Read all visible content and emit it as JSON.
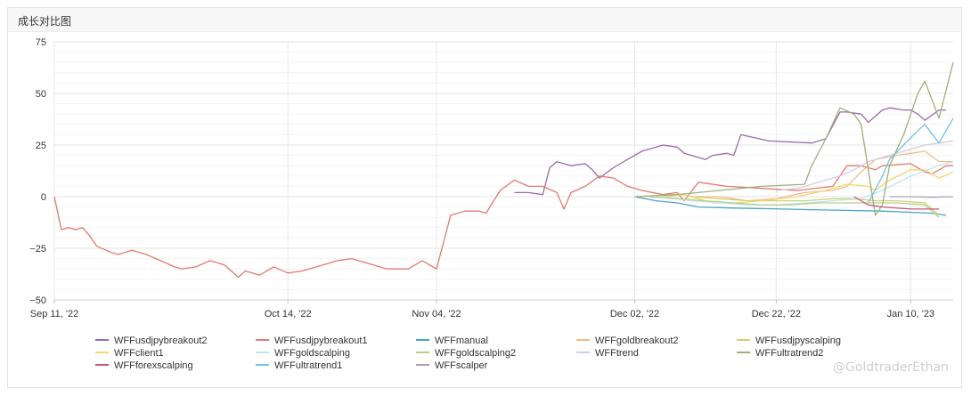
{
  "card": {
    "title": "成长对比图"
  },
  "watermark": "@GoldtraderEthan",
  "chart_data": {
    "type": "line",
    "y_ticks": [
      75,
      50,
      25,
      0,
      -25,
      -50
    ],
    "y_tick_labels": [
      "75",
      "50",
      "25",
      "0",
      "−25",
      "−50"
    ],
    "ylim": [
      -50,
      75
    ],
    "x_tick_labels": [
      "Sep 11, '22",
      "Oct 14, '22",
      "Nov 04, '22",
      "Dec 02, '22",
      "Dec 22, '22",
      "Jan 10, '23"
    ],
    "x_tick_dates": [
      "2022-09-11",
      "2022-10-14",
      "2022-11-04",
      "2022-12-02",
      "2022-12-22",
      "2023-01-10"
    ],
    "xlim": [
      "2022-09-11",
      "2023-01-16"
    ],
    "grid": true,
    "legend_position": "bottom",
    "series": [
      {
        "name": "WFFusdjpybreakout2",
        "color": "#9b6aa8",
        "points": [
          [
            "2022-11-15",
            2
          ],
          [
            "2022-11-17",
            2
          ],
          [
            "2022-11-19",
            1
          ],
          [
            "2022-11-20",
            14
          ],
          [
            "2022-11-21",
            17
          ],
          [
            "2022-11-23",
            15
          ],
          [
            "2022-11-25",
            16
          ],
          [
            "2022-11-26",
            13
          ],
          [
            "2022-11-27",
            9
          ],
          [
            "2022-11-29",
            14
          ],
          [
            "2022-12-01",
            18
          ],
          [
            "2022-12-03",
            22
          ],
          [
            "2022-12-06",
            25
          ],
          [
            "2022-12-08",
            24
          ],
          [
            "2022-12-09",
            21
          ],
          [
            "2022-12-12",
            18
          ],
          [
            "2022-12-13",
            20
          ],
          [
            "2022-12-15",
            21
          ],
          [
            "2022-12-16",
            20
          ],
          [
            "2022-12-17",
            30
          ],
          [
            "2022-12-21",
            27
          ],
          [
            "2022-12-27",
            26
          ],
          [
            "2022-12-29",
            28
          ],
          [
            "2022-12-31",
            41
          ],
          [
            "2023-01-01",
            41
          ],
          [
            "2023-01-03",
            40
          ],
          [
            "2023-01-04",
            36
          ],
          [
            "2023-01-06",
            42
          ],
          [
            "2023-01-07",
            43
          ],
          [
            "2023-01-09",
            42
          ],
          [
            "2023-01-10",
            42
          ],
          [
            "2023-01-11",
            40
          ],
          [
            "2023-01-12",
            37
          ],
          [
            "2023-01-14",
            42
          ],
          [
            "2023-01-15",
            42
          ]
        ]
      },
      {
        "name": "WFFusdjpybreakout1",
        "color": "#e07a72",
        "points": [
          [
            "2022-09-11",
            0
          ],
          [
            "2022-09-12",
            -16
          ],
          [
            "2022-09-13",
            -15
          ],
          [
            "2022-09-14",
            -16
          ],
          [
            "2022-09-15",
            -15
          ],
          [
            "2022-09-16",
            -19
          ],
          [
            "2022-09-17",
            -24
          ],
          [
            "2022-09-19",
            -27
          ],
          [
            "2022-09-20",
            -28
          ],
          [
            "2022-09-22",
            -26
          ],
          [
            "2022-09-24",
            -28
          ],
          [
            "2022-09-26",
            -31
          ],
          [
            "2022-09-28",
            -34
          ],
          [
            "2022-09-29",
            -35
          ],
          [
            "2022-10-01",
            -34
          ],
          [
            "2022-10-03",
            -31
          ],
          [
            "2022-10-05",
            -33
          ],
          [
            "2022-10-07",
            -39
          ],
          [
            "2022-10-08",
            -36
          ],
          [
            "2022-10-10",
            -38
          ],
          [
            "2022-10-12",
            -34
          ],
          [
            "2022-10-14",
            -37
          ],
          [
            "2022-10-16",
            -36
          ],
          [
            "2022-10-18",
            -34
          ],
          [
            "2022-10-19",
            -33
          ],
          [
            "2022-10-21",
            -31
          ],
          [
            "2022-10-23",
            -30
          ],
          [
            "2022-10-25",
            -32
          ],
          [
            "2022-10-28",
            -35
          ],
          [
            "2022-10-31",
            -35
          ],
          [
            "2022-11-02",
            -31
          ],
          [
            "2022-11-04",
            -35
          ],
          [
            "2022-11-06",
            -9
          ],
          [
            "2022-11-08",
            -7
          ],
          [
            "2022-11-10",
            -7
          ],
          [
            "2022-11-11",
            -8
          ],
          [
            "2022-11-13",
            3
          ],
          [
            "2022-11-15",
            8
          ],
          [
            "2022-11-17",
            5
          ],
          [
            "2022-11-19",
            5
          ],
          [
            "2022-11-21",
            2
          ],
          [
            "2022-11-22",
            -6
          ],
          [
            "2022-11-23",
            2
          ],
          [
            "2022-11-25",
            5
          ],
          [
            "2022-11-27",
            10
          ],
          [
            "2022-11-29",
            9
          ],
          [
            "2022-12-01",
            5
          ],
          [
            "2022-12-03",
            3
          ],
          [
            "2022-12-06",
            1
          ],
          [
            "2022-12-08",
            2
          ],
          [
            "2022-12-09",
            -2
          ],
          [
            "2022-12-11",
            7
          ],
          [
            "2022-12-15",
            5
          ],
          [
            "2022-12-20",
            4
          ],
          [
            "2022-12-25",
            3
          ],
          [
            "2022-12-30",
            5
          ],
          [
            "2023-01-01",
            15
          ],
          [
            "2023-01-03",
            15
          ],
          [
            "2023-01-05",
            13
          ],
          [
            "2023-01-06",
            15
          ],
          [
            "2023-01-10",
            16
          ],
          [
            "2023-01-12",
            12
          ],
          [
            "2023-01-13",
            11
          ],
          [
            "2023-01-15",
            15
          ],
          [
            "2023-01-16",
            15
          ]
        ]
      },
      {
        "name": "WFFmanual",
        "color": "#4aa4c8",
        "points": [
          [
            "2022-12-02",
            0
          ],
          [
            "2022-12-05",
            -2
          ],
          [
            "2022-12-08",
            -3
          ],
          [
            "2022-12-11",
            -5
          ],
          [
            "2022-12-16",
            -5.5
          ],
          [
            "2022-12-23",
            -6
          ],
          [
            "2022-12-30",
            -6.5
          ],
          [
            "2023-01-06",
            -7
          ],
          [
            "2023-01-13",
            -8
          ],
          [
            "2023-01-15",
            -9
          ]
        ]
      },
      {
        "name": "WFFgoldbreakout2",
        "color": "#f5b98a",
        "points": [
          [
            "2022-12-10",
            0
          ],
          [
            "2022-12-14",
            0
          ],
          [
            "2022-12-18",
            -2
          ],
          [
            "2022-12-22",
            -1
          ],
          [
            "2022-12-26",
            2
          ],
          [
            "2022-12-30",
            3
          ],
          [
            "2023-01-01",
            5
          ],
          [
            "2023-01-03",
            12
          ],
          [
            "2023-01-05",
            18
          ],
          [
            "2023-01-08",
            20
          ],
          [
            "2023-01-10",
            21
          ],
          [
            "2023-01-12",
            22
          ],
          [
            "2023-01-14",
            17
          ],
          [
            "2023-01-16",
            17
          ]
        ]
      },
      {
        "name": "WFFusdjpyscalping",
        "color": "#cdd27a",
        "points": [
          [
            "2022-12-10",
            0
          ],
          [
            "2022-12-14",
            -1
          ],
          [
            "2022-12-18",
            -2
          ],
          [
            "2022-12-22",
            -2
          ],
          [
            "2022-12-26",
            -2
          ],
          [
            "2022-12-30",
            -1
          ],
          [
            "2023-01-02",
            -1
          ],
          [
            "2023-01-05",
            -2
          ],
          [
            "2023-01-08",
            -2
          ],
          [
            "2023-01-12",
            -3
          ],
          [
            "2023-01-14",
            -9
          ]
        ]
      },
      {
        "name": "WFFclient1",
        "color": "#f3d66b",
        "points": [
          [
            "2022-12-06",
            0
          ],
          [
            "2022-12-09",
            1
          ],
          [
            "2022-12-11",
            -1
          ],
          [
            "2022-12-13",
            -3
          ],
          [
            "2022-12-16",
            -3
          ],
          [
            "2022-12-20",
            -2
          ],
          [
            "2022-12-25",
            0
          ],
          [
            "2022-12-29",
            3
          ],
          [
            "2023-01-01",
            6
          ],
          [
            "2023-01-04",
            5
          ],
          [
            "2023-01-05",
            3
          ],
          [
            "2023-01-07",
            8
          ],
          [
            "2023-01-10",
            13
          ],
          [
            "2023-01-12",
            13
          ],
          [
            "2023-01-14",
            9
          ],
          [
            "2023-01-16",
            12
          ]
        ]
      },
      {
        "name": "WFFgoldscalping",
        "color": "#bfe6ef",
        "points": [
          [
            "2022-12-06",
            0
          ],
          [
            "2022-12-10",
            -2
          ],
          [
            "2022-12-14",
            -3
          ],
          [
            "2022-12-18",
            -4
          ],
          [
            "2022-12-22",
            -4
          ],
          [
            "2022-12-26",
            -3
          ],
          [
            "2022-12-30",
            -2
          ],
          [
            "2023-01-03",
            -1
          ],
          [
            "2023-01-06",
            3
          ],
          [
            "2023-01-10",
            10
          ],
          [
            "2023-01-14",
            15
          ],
          [
            "2023-01-16",
            17
          ]
        ]
      },
      {
        "name": "WFFgoldscalping2",
        "color": "#b8cf8a",
        "points": [
          [
            "2022-12-04",
            0
          ],
          [
            "2022-12-08",
            -1
          ],
          [
            "2022-12-12",
            -2
          ],
          [
            "2022-12-16",
            -3
          ],
          [
            "2022-12-20",
            -4
          ],
          [
            "2022-12-24",
            -4
          ],
          [
            "2022-12-28",
            -3
          ],
          [
            "2023-01-01",
            -3
          ],
          [
            "2023-01-04",
            -3
          ],
          [
            "2023-01-08",
            -3
          ],
          [
            "2023-01-12",
            -4
          ],
          [
            "2023-01-14",
            -10
          ]
        ]
      },
      {
        "name": "WFFtrend",
        "color": "#d8c9e6",
        "points": [
          [
            "2022-12-22",
            3
          ],
          [
            "2022-12-25",
            4
          ],
          [
            "2022-12-28",
            7
          ],
          [
            "2022-12-31",
            10
          ],
          [
            "2023-01-02",
            13
          ],
          [
            "2023-01-04",
            17
          ],
          [
            "2023-01-06",
            19
          ],
          [
            "2023-01-08",
            21
          ],
          [
            "2023-01-10",
            23
          ],
          [
            "2023-01-12",
            25
          ],
          [
            "2023-01-14",
            26
          ],
          [
            "2023-01-16",
            27
          ]
        ]
      },
      {
        "name": "WFFultratrend2",
        "color": "#9fb079",
        "points": [
          [
            "2022-12-02",
            0
          ],
          [
            "2022-12-08",
            1
          ],
          [
            "2022-12-14",
            3
          ],
          [
            "2022-12-20",
            5
          ],
          [
            "2022-12-26",
            6
          ],
          [
            "2022-12-27",
            15
          ],
          [
            "2022-12-29",
            28
          ],
          [
            "2022-12-31",
            43
          ],
          [
            "2023-01-02",
            40
          ],
          [
            "2023-01-03",
            35
          ],
          [
            "2023-01-05",
            -9
          ],
          [
            "2023-01-06",
            -4
          ],
          [
            "2023-01-07",
            15
          ],
          [
            "2023-01-09",
            30
          ],
          [
            "2023-01-11",
            50
          ],
          [
            "2023-01-12",
            56
          ],
          [
            "2023-01-14",
            38
          ],
          [
            "2023-01-16",
            65
          ]
        ]
      },
      {
        "name": "WFFforexscalping",
        "color": "#c45a73",
        "points": [
          [
            "2023-01-02",
            0
          ],
          [
            "2023-01-04",
            -4
          ],
          [
            "2023-01-06",
            -5
          ],
          [
            "2023-01-10",
            -6
          ],
          [
            "2023-01-14",
            -6
          ]
        ]
      },
      {
        "name": "WFFultratrend1",
        "color": "#6fc3e6",
        "points": [
          [
            "2023-01-04",
            -3
          ],
          [
            "2023-01-06",
            10
          ],
          [
            "2023-01-07",
            18
          ],
          [
            "2023-01-09",
            25
          ],
          [
            "2023-01-11",
            32
          ],
          [
            "2023-01-12",
            35
          ],
          [
            "2023-01-14",
            26
          ],
          [
            "2023-01-16",
            38
          ]
        ]
      },
      {
        "name": "WFFscalper",
        "color": "#a9a2c4",
        "points": [
          [
            "2023-01-07",
            0
          ],
          [
            "2023-01-10",
            0
          ],
          [
            "2023-01-13",
            -0.3
          ],
          [
            "2023-01-16",
            0
          ]
        ]
      }
    ]
  }
}
